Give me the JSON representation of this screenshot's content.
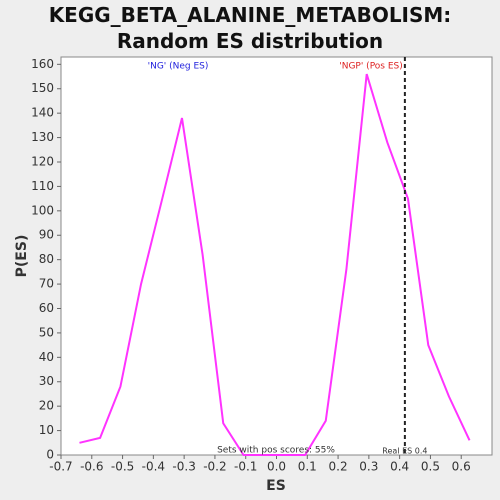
{
  "chart_data": {
    "type": "line",
    "title": "KEGG_BETA_ALANINE_METABOLISM: Random ES distribution",
    "x_label": "ES",
    "y_label": "P(ES)",
    "series": [
      {
        "color": "#ff33ff",
        "x": [
          -0.64,
          -0.573,
          -0.507,
          -0.44,
          -0.373,
          -0.307,
          -0.24,
          -0.173,
          -0.107,
          -0.04,
          0.027,
          0.093,
          0.16,
          0.227,
          0.293,
          0.36,
          0.427,
          0.493,
          0.56,
          0.627
        ],
        "values": [
          5,
          7,
          28,
          70,
          104,
          138,
          82,
          13,
          0,
          0,
          0,
          0,
          14,
          76,
          156,
          128,
          105,
          45,
          24,
          6
        ]
      }
    ],
    "xlim": [
      -0.7,
      0.7
    ],
    "xticks": [
      -0.7,
      -0.6,
      -0.5,
      -0.4,
      -0.3,
      -0.2,
      -0.1,
      {
        "value": 0,
        "label": "0.0"
      },
      0.1,
      0.2,
      0.3,
      0.4,
      0.5,
      0.6
    ],
    "ylim": [
      0,
      163
    ],
    "yticks": [
      0,
      10,
      20,
      30,
      40,
      50,
      60,
      70,
      80,
      90,
      100,
      110,
      120,
      130,
      140,
      150,
      160
    ],
    "real_es": {
      "value": 0.417,
      "label": "Real ES 0.4"
    },
    "neg_label": "'NG' (Neg ES)",
    "pos_label": "'NGP' (Pos ES)",
    "pos_scores_note": "Sets with pos scores: 55%"
  }
}
